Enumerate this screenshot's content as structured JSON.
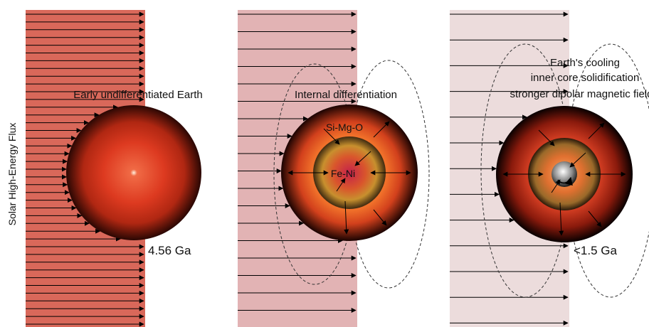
{
  "side_label": "Solar High-Energy Flux",
  "panels": [
    {
      "id": "early",
      "title_lines": [
        "Early undifferentiated Earth"
      ],
      "age": "4.56 Ga",
      "band_color": "#d9685a",
      "core_label": "",
      "mantle_label": ""
    },
    {
      "id": "differentiation",
      "title_lines": [
        "Internal differentiation"
      ],
      "age": "",
      "band_color": "#e2b3b4",
      "core_label": "Fe-Ni",
      "mantle_label": "Si-Mg-O"
    },
    {
      "id": "cooling",
      "title_lines": [
        "Earth's cooling",
        "inner core solidification",
        "stronger dipolar magnetic field"
      ],
      "age": "<1.5 Ga",
      "band_color": "#ecdcdc",
      "core_label": "",
      "mantle_label": ""
    }
  ]
}
